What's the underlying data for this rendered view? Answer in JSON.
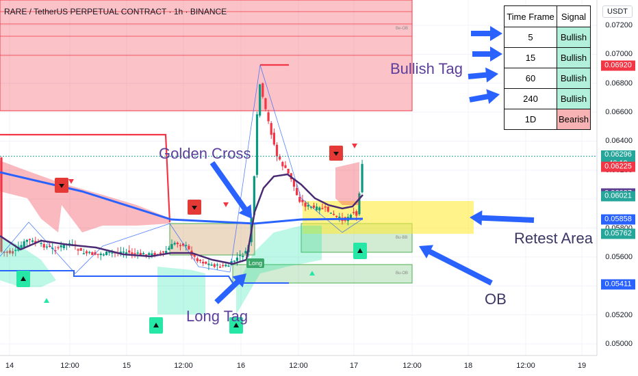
{
  "header": {
    "title": "RARE / TetherUS PERPETUAL CONTRACT · 1h · BINANCE",
    "currency": "USDT"
  },
  "price_axis": {
    "labels": [
      "0.07200",
      "0.07000",
      "0.06800",
      "0.06600",
      "0.06400",
      "0.06200",
      "0.06000",
      "0.05800",
      "0.05600",
      "0.05400",
      "0.05200",
      "0.05000"
    ],
    "badges": [
      {
        "text": "0.06920",
        "color": "#f23645",
        "value": 0.0692
      },
      {
        "text": "0.06296",
        "sub": "40:19",
        "color": "#26a69a",
        "value": 0.06296
      },
      {
        "text": "0.06225",
        "color": "#f23645",
        "value": 0.06225
      },
      {
        "text": "0.06037",
        "color": "#5d3f92",
        "value": 0.06037
      },
      {
        "text": "0.06021",
        "color": "#26a69a",
        "value": 0.06021
      },
      {
        "text": "0.05858",
        "color": "#2962ff",
        "value": 0.05858
      },
      {
        "text": "0.05762",
        "color": "#26a69a",
        "value": 0.05762
      },
      {
        "text": "0.05411",
        "color": "#2962ff",
        "value": 0.05411
      }
    ]
  },
  "time_axis": {
    "labels": [
      "14",
      "12:00",
      "15",
      "12:00",
      "16",
      "12:00",
      "17",
      "12:00",
      "18",
      "12:00",
      "19"
    ]
  },
  "signal_table": {
    "headers": [
      "Time Frame",
      "Signal"
    ],
    "rows": [
      {
        "tf": "5",
        "signal": "Bullish"
      },
      {
        "tf": "15",
        "signal": "Bullish"
      },
      {
        "tf": "60",
        "signal": "Bullish"
      },
      {
        "tf": "240",
        "signal": "Bullish"
      },
      {
        "tf": "1D",
        "signal": "Bearish"
      }
    ]
  },
  "annotations": {
    "bullish_tag": "Bullish Tag",
    "golden_cross": "Golden Cross",
    "long_tag": "Long Tag",
    "retest_area": "Retest Area",
    "ob": "OB"
  },
  "zone_labels": {
    "be_ob": "Be-OB",
    "bu_bb": "Bu-BB",
    "bu_ob": "Bu-OB",
    "long": "Long"
  },
  "chart_data": {
    "type": "candlestick",
    "title": "RARE / TetherUS PERPETUAL CONTRACT · 1h · BINANCE",
    "ylim": [
      0.0495,
      0.0735
    ],
    "y_ticks": [
      0.072,
      0.07,
      0.068,
      0.066,
      0.064,
      0.062,
      0.06,
      0.058,
      0.056,
      0.054,
      0.052,
      0.05
    ],
    "x_labels": [
      "14",
      "12:00",
      "15",
      "12:00",
      "16",
      "12:00",
      "17",
      "12:00",
      "18",
      "12:00",
      "19"
    ],
    "last_price": 0.06296,
    "moving_average_levels": {
      "fast": 0.06037,
      "slow": 0.05858
    },
    "zones": [
      {
        "name": "Be-OB",
        "low": 0.066,
        "high": 0.0735
      },
      {
        "name": "Bu-BB",
        "low": 0.0569,
        "high": 0.059
      },
      {
        "name": "Bu-OB",
        "low": 0.0543,
        "high": 0.0556
      },
      {
        "name": "Retest Area",
        "low": 0.0577,
        "high": 0.0601
      }
    ]
  }
}
